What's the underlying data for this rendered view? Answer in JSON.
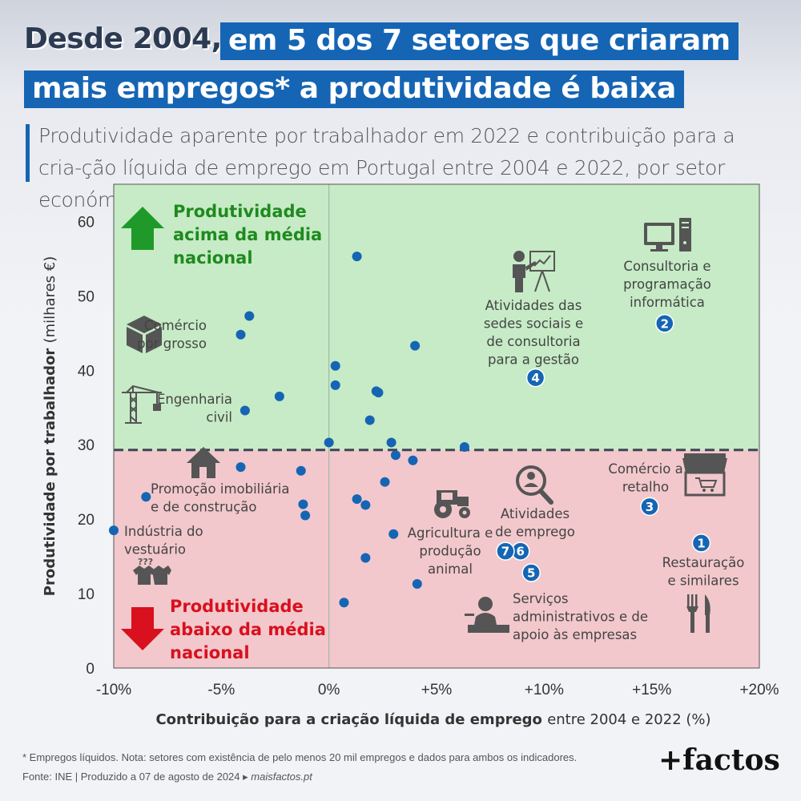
{
  "title": {
    "part1": "Desde 2004,",
    "part2": "em 5 dos 7 setores que criaram",
    "part3": "mais empregos* a produtividade é baixa"
  },
  "subtitle": "Produtividade aparente por trabalhador em 2022 e contribuição para a cria-ção líquida de emprego em Portugal entre 2004 e 2022, por setor económico",
  "chart_data": {
    "type": "scatter",
    "xlabel_bold": "Contribuição para a criação líquida de emprego",
    "xlabel_rest": "entre 2004 e 2022 (%)",
    "ylabel_bold": "Produtividade por trabalhador",
    "ylabel_rest": "(milhares €)",
    "xlim": [
      -10,
      20
    ],
    "ylim": [
      0,
      65
    ],
    "x_ticks": [
      -10,
      -5,
      0,
      5,
      10,
      15,
      20
    ],
    "x_tick_labels": [
      "-10%",
      "-5%",
      "0%",
      "+5%",
      "+10%",
      "+15%",
      "+20%"
    ],
    "y_ticks": [
      0,
      10,
      20,
      30,
      40,
      50,
      60
    ],
    "y_tick_labels": [
      "0",
      "10",
      "20",
      "30",
      "40",
      "50",
      "60"
    ],
    "threshold": 29.3,
    "zone_colors": {
      "above": "#c6ebc6",
      "below": "#f2c8cc"
    },
    "point_color": "#1565b4",
    "above_label": [
      "Produtividade",
      "acima da média",
      "nacional"
    ],
    "below_label": [
      "Produtividade",
      "abaixo da média",
      "nacional"
    ],
    "above_color": "#1f8a1f",
    "below_color": "#d9101e",
    "points": [
      {
        "x": -10.0,
        "y": 18.5
      },
      {
        "x": -8.5,
        "y": 23.0
      },
      {
        "x": -4.1,
        "y": 44.8
      },
      {
        "x": -3.7,
        "y": 47.3
      },
      {
        "x": -3.9,
        "y": 34.6
      },
      {
        "x": -2.3,
        "y": 36.5
      },
      {
        "x": -4.1,
        "y": 27.0
      },
      {
        "x": -1.3,
        "y": 26.5
      },
      {
        "x": -1.2,
        "y": 22.0
      },
      {
        "x": -1.1,
        "y": 20.5
      },
      {
        "x": 0.0,
        "y": 30.3
      },
      {
        "x": 0.3,
        "y": 40.6
      },
      {
        "x": 0.3,
        "y": 38.0
      },
      {
        "x": 0.7,
        "y": 8.8
      },
      {
        "x": 1.3,
        "y": 55.3
      },
      {
        "x": 1.3,
        "y": 22.7
      },
      {
        "x": 1.7,
        "y": 21.9
      },
      {
        "x": 1.7,
        "y": 14.8
      },
      {
        "x": 1.9,
        "y": 33.3
      },
      {
        "x": 2.2,
        "y": 37.2
      },
      {
        "x": 2.3,
        "y": 37.0
      },
      {
        "x": 2.6,
        "y": 25.0
      },
      {
        "x": 2.9,
        "y": 30.3
      },
      {
        "x": 3.1,
        "y": 28.6
      },
      {
        "x": 3.0,
        "y": 18.0
      },
      {
        "x": 3.9,
        "y": 27.9
      },
      {
        "x": 4.0,
        "y": 43.3
      },
      {
        "x": 4.1,
        "y": 11.3
      },
      {
        "x": 6.3,
        "y": 29.7
      }
    ],
    "numbered_sectors": [
      {
        "num": "1",
        "x": 17.3,
        "y": 16.8,
        "label": [
          "Restauração",
          "e similares"
        ],
        "icon": "cutlery-icon"
      },
      {
        "num": "2",
        "x": 15.6,
        "y": 46.3,
        "label": [
          "Consultoria e",
          "programação",
          "informática"
        ],
        "icon": "computer-icon"
      },
      {
        "num": "3",
        "x": 14.9,
        "y": 21.7,
        "label": [
          "Comércio a",
          "retalho"
        ],
        "icon": "shop-icon"
      },
      {
        "num": "4",
        "x": 9.6,
        "y": 39.0,
        "label": [
          "Atividades das",
          "sedes sociais e",
          "de consultoria",
          "para a gestão"
        ],
        "icon": "presenter-icon"
      },
      {
        "num": "5",
        "x": 9.4,
        "y": 12.8,
        "label": [
          "Serviços",
          "administrativos e de",
          "apoio às empresas"
        ],
        "icon": "receptionist-icon"
      },
      {
        "num": "6",
        "x": 8.9,
        "y": 15.7,
        "label": [
          "Atividades",
          "de emprego"
        ],
        "icon": "job-search-icon"
      },
      {
        "num": "7",
        "x": 8.2,
        "y": 15.7,
        "label": [
          "Agricultura e",
          "produção",
          "animal"
        ],
        "icon": "tractor-icon"
      }
    ],
    "annotations": [
      {
        "label": [
          "Comércio",
          "por grosso"
        ],
        "icon": "box-icon"
      },
      {
        "label": [
          "Engenharia",
          "civil"
        ],
        "icon": "crane-icon"
      },
      {
        "label": [
          "Promoção imobiliária",
          "e de construção"
        ],
        "icon": "house-icon"
      },
      {
        "label": [
          "Indústria do",
          "vestuário"
        ],
        "icon": "clothes-icon"
      }
    ]
  },
  "footnote": "* Empregos líquidos. Nota: setores com existência de pelo menos 20 mil empregos e dados para ambos os indicadores.",
  "source_prefix": "Fonte: INE  |  Produzido a 07 de agosto de 2024 ▸ ",
  "source_site": "maisfactos.pt",
  "brand": "+factos"
}
